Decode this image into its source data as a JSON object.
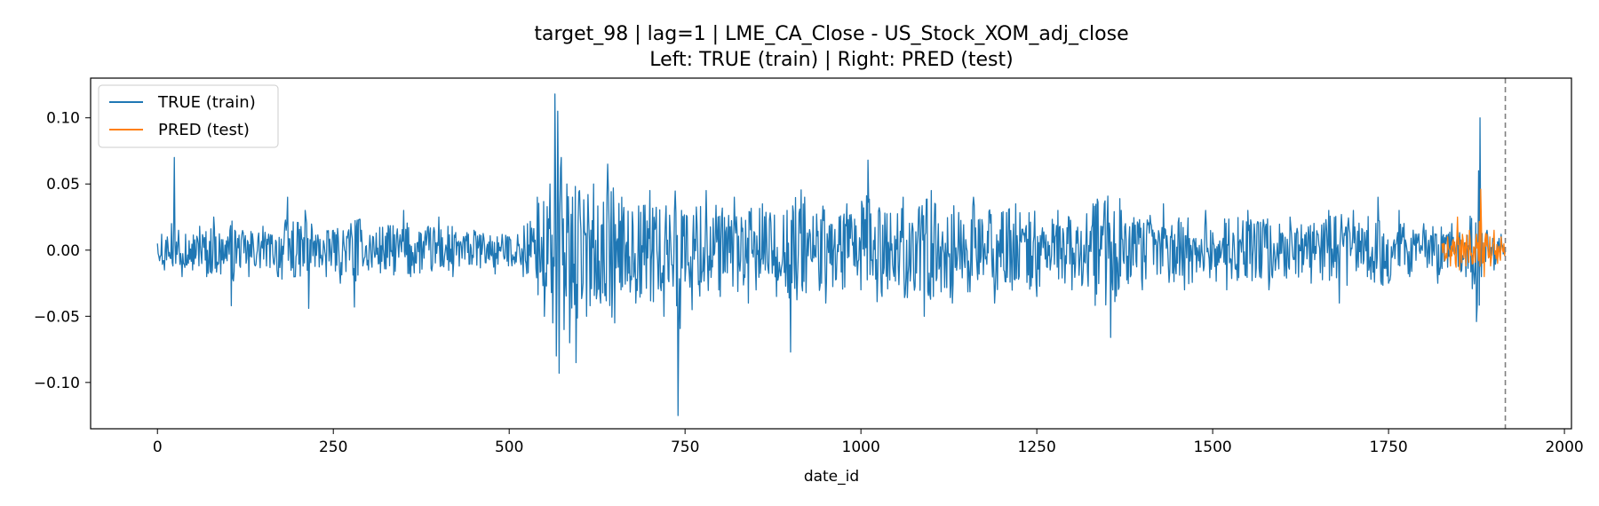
{
  "chart_data": {
    "type": "line",
    "title": "target_98 | lag=1 | LME_CA_Close - US_Stock_XOM_adj_close",
    "subtitle": "Left: TRUE (train) | Right: PRED (test)",
    "xlabel": "date_id",
    "ylabel": "",
    "xlim": [
      -95,
      2010
    ],
    "ylim": [
      -0.135,
      0.13
    ],
    "xticks": [
      0,
      250,
      500,
      750,
      1000,
      1250,
      1500,
      1750,
      2000
    ],
    "yticks": [
      -0.1,
      -0.05,
      0.0,
      0.05,
      0.1
    ],
    "xtick_labels": [
      "0",
      "250",
      "500",
      "750",
      "1000",
      "1250",
      "1500",
      "1750",
      "2000"
    ],
    "ytick_labels": [
      "−0.10",
      "−0.05",
      "0.00",
      "0.05",
      "0.10"
    ],
    "grid": false,
    "legend_position": "top-left",
    "split_marker_x": 1916,
    "series": [
      {
        "name": "TRUE (train)",
        "color": "#1f77b4",
        "x_range": [
          0,
          1916
        ],
        "points": [
          [
            0,
            0.005
          ],
          [
            3,
            -0.008
          ],
          [
            6,
            0.012
          ],
          [
            10,
            -0.015
          ],
          [
            14,
            0.01
          ],
          [
            18,
            -0.006
          ],
          [
            20,
            0.02
          ],
          [
            22,
            -0.012
          ],
          [
            24,
            0.07
          ],
          [
            26,
            -0.01
          ],
          [
            30,
            0.015
          ],
          [
            35,
            -0.02
          ],
          [
            40,
            0.012
          ],
          [
            50,
            -0.015
          ],
          [
            60,
            0.018
          ],
          [
            70,
            -0.02
          ],
          [
            80,
            0.025
          ],
          [
            90,
            -0.018
          ],
          [
            100,
            0.01
          ],
          [
            105,
            -0.042
          ],
          [
            110,
            0.015
          ],
          [
            130,
            -0.02
          ],
          [
            150,
            0.018
          ],
          [
            170,
            -0.015
          ],
          [
            185,
            0.04
          ],
          [
            195,
            -0.02
          ],
          [
            210,
            0.03
          ],
          [
            215,
            -0.044
          ],
          [
            220,
            0.015
          ],
          [
            240,
            -0.02
          ],
          [
            250,
            0.015
          ],
          [
            260,
            -0.025
          ],
          [
            275,
            0.02
          ],
          [
            280,
            -0.043
          ],
          [
            290,
            0.015
          ],
          [
            300,
            -0.015
          ],
          [
            350,
            0.03
          ],
          [
            360,
            -0.02
          ],
          [
            400,
            0.025
          ],
          [
            420,
            -0.02
          ],
          [
            450,
            0.015
          ],
          [
            480,
            -0.018
          ],
          [
            500,
            0.01
          ],
          [
            520,
            -0.02
          ],
          [
            540,
            0.04
          ],
          [
            550,
            -0.05
          ],
          [
            558,
            0.05
          ],
          [
            562,
            -0.055
          ],
          [
            565,
            0.118
          ],
          [
            567,
            -0.08
          ],
          [
            569,
            0.105
          ],
          [
            571,
            -0.093
          ],
          [
            574,
            0.07
          ],
          [
            578,
            -0.06
          ],
          [
            582,
            0.05
          ],
          [
            586,
            -0.07
          ],
          [
            590,
            0.04
          ],
          [
            595,
            -0.085
          ],
          [
            600,
            0.045
          ],
          [
            610,
            -0.05
          ],
          [
            620,
            0.05
          ],
          [
            630,
            -0.04
          ],
          [
            640,
            0.065
          ],
          [
            650,
            -0.055
          ],
          [
            660,
            0.04
          ],
          [
            680,
            -0.04
          ],
          [
            700,
            0.045
          ],
          [
            720,
            -0.05
          ],
          [
            735,
            0.03
          ],
          [
            740,
            -0.125
          ],
          [
            745,
            0.03
          ],
          [
            760,
            -0.045
          ],
          [
            780,
            0.045
          ],
          [
            800,
            -0.035
          ],
          [
            820,
            0.04
          ],
          [
            840,
            -0.04
          ],
          [
            860,
            0.035
          ],
          [
            880,
            -0.035
          ],
          [
            895,
            0.03
          ],
          [
            900,
            -0.077
          ],
          [
            920,
            0.04
          ],
          [
            950,
            -0.04
          ],
          [
            980,
            0.035
          ],
          [
            1000,
            -0.03
          ],
          [
            1010,
            0.068
          ],
          [
            1030,
            -0.035
          ],
          [
            1060,
            0.04
          ],
          [
            1090,
            -0.05
          ],
          [
            1100,
            0.045
          ],
          [
            1130,
            -0.04
          ],
          [
            1160,
            0.04
          ],
          [
            1190,
            -0.04
          ],
          [
            1220,
            0.035
          ],
          [
            1250,
            -0.035
          ],
          [
            1280,
            0.03
          ],
          [
            1300,
            -0.03
          ],
          [
            1330,
            0.035
          ],
          [
            1355,
            -0.066
          ],
          [
            1370,
            0.03
          ],
          [
            1400,
            -0.03
          ],
          [
            1430,
            0.035
          ],
          [
            1460,
            -0.03
          ],
          [
            1490,
            0.03
          ],
          [
            1520,
            -0.03
          ],
          [
            1550,
            0.03
          ],
          [
            1580,
            -0.03
          ],
          [
            1610,
            0.025
          ],
          [
            1640,
            -0.025
          ],
          [
            1665,
            0.03
          ],
          [
            1680,
            -0.04
          ],
          [
            1700,
            0.03
          ],
          [
            1720,
            -0.02
          ],
          [
            1735,
            0.04
          ],
          [
            1750,
            -0.025
          ],
          [
            1765,
            0.03
          ],
          [
            1780,
            -0.02
          ],
          [
            1800,
            0.02
          ],
          [
            1820,
            -0.025
          ],
          [
            1840,
            0.02
          ],
          [
            1860,
            -0.02
          ],
          [
            1875,
            -0.054
          ],
          [
            1878,
            0.06
          ],
          [
            1880,
            0.1
          ],
          [
            1882,
            -0.02
          ],
          [
            1890,
            0.015
          ],
          [
            1900,
            -0.015
          ],
          [
            1910,
            0.012
          ],
          [
            1916,
            0.0
          ]
        ]
      },
      {
        "name": "PRED (test)",
        "color": "#ff7f0e",
        "x_range": [
          1826,
          1916
        ],
        "points": [
          [
            1826,
            0.005
          ],
          [
            1830,
            -0.008
          ],
          [
            1834,
            0.01
          ],
          [
            1838,
            -0.012
          ],
          [
            1842,
            0.008
          ],
          [
            1845,
            -0.01
          ],
          [
            1848,
            0.025
          ],
          [
            1851,
            -0.015
          ],
          [
            1855,
            0.012
          ],
          [
            1860,
            -0.012
          ],
          [
            1865,
            0.015
          ],
          [
            1870,
            -0.01
          ],
          [
            1875,
            0.012
          ],
          [
            1878,
            -0.008
          ],
          [
            1881,
            0.046
          ],
          [
            1883,
            -0.01
          ],
          [
            1886,
            -0.02
          ],
          [
            1890,
            0.012
          ],
          [
            1895,
            -0.012
          ],
          [
            1900,
            0.015
          ],
          [
            1905,
            -0.01
          ],
          [
            1910,
            0.01
          ],
          [
            1916,
            0.002
          ]
        ]
      }
    ]
  }
}
